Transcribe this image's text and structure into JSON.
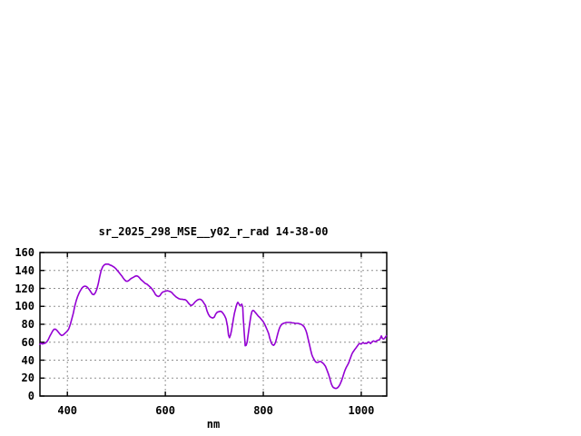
{
  "page": {
    "background": "#ffffff"
  },
  "chart_data": {
    "type": "line",
    "title": "sr_2025_298_MSE__y02_r_rad 14-38-00",
    "xlabel": "nm",
    "ylabel": "",
    "xlim": [
      344,
      1052
    ],
    "ylim": [
      0,
      160
    ],
    "x_ticks": [
      400,
      600,
      800,
      1000
    ],
    "y_ticks": [
      0,
      20,
      40,
      60,
      80,
      100,
      120,
      140,
      160
    ],
    "grid": true,
    "legend_position": "none",
    "colors": {
      "line": "#9400D3",
      "grid": "#909090",
      "border": "#000000",
      "text": "#000000"
    },
    "series": [
      {
        "name": "sr_2025_298_MSE__y02_r_rad 14-38-00",
        "points": [
          [
            344,
            57.5
          ],
          [
            346,
            59
          ],
          [
            349,
            58
          ],
          [
            352,
            58.5
          ],
          [
            355,
            59
          ],
          [
            358,
            60.5
          ],
          [
            361,
            63
          ],
          [
            364,
            66.5
          ],
          [
            367,
            69.5
          ],
          [
            370,
            72.5
          ],
          [
            373,
            74.5
          ],
          [
            376,
            74.5
          ],
          [
            379,
            73
          ],
          [
            382,
            71
          ],
          [
            385,
            69
          ],
          [
            388,
            67.5
          ],
          [
            391,
            68
          ],
          [
            394,
            69.5
          ],
          [
            397,
            71
          ],
          [
            400,
            72.5
          ],
          [
            403,
            75
          ],
          [
            406,
            80
          ],
          [
            409,
            86
          ],
          [
            412,
            92
          ],
          [
            415,
            100
          ],
          [
            418,
            106
          ],
          [
            421,
            111
          ],
          [
            424,
            115
          ],
          [
            427,
            118
          ],
          [
            430,
            120.5
          ],
          [
            433,
            122
          ],
          [
            436,
            122.5
          ],
          [
            439,
            122
          ],
          [
            442,
            120.5
          ],
          [
            445,
            118.5
          ],
          [
            448,
            116
          ],
          [
            451,
            113.5
          ],
          [
            454,
            113
          ],
          [
            457,
            115
          ],
          [
            460,
            119
          ],
          [
            463,
            125
          ],
          [
            466,
            133
          ],
          [
            469,
            140
          ],
          [
            472,
            144
          ],
          [
            475,
            146
          ],
          [
            478,
            147
          ],
          [
            481,
            147
          ],
          [
            484,
            147
          ],
          [
            487,
            146
          ],
          [
            490,
            145.5
          ],
          [
            493,
            144.5
          ],
          [
            496,
            143.5
          ],
          [
            499,
            142
          ],
          [
            502,
            140
          ],
          [
            505,
            138
          ],
          [
            508,
            136
          ],
          [
            511,
            134
          ],
          [
            514,
            131.5
          ],
          [
            517,
            129.5
          ],
          [
            520,
            128
          ],
          [
            523,
            128
          ],
          [
            526,
            129
          ],
          [
            529,
            130.5
          ],
          [
            532,
            131.5
          ],
          [
            535,
            132.5
          ],
          [
            538,
            133.5
          ],
          [
            541,
            134
          ],
          [
            544,
            133.5
          ],
          [
            547,
            132
          ],
          [
            550,
            130
          ],
          [
            553,
            128.5
          ],
          [
            556,
            127
          ],
          [
            559,
            125.5
          ],
          [
            562,
            125
          ],
          [
            565,
            123.5
          ],
          [
            568,
            122
          ],
          [
            571,
            120.5
          ],
          [
            574,
            118.5
          ],
          [
            577,
            116
          ],
          [
            580,
            113
          ],
          [
            583,
            111.5
          ],
          [
            586,
            111
          ],
          [
            589,
            112
          ],
          [
            592,
            114.5
          ],
          [
            595,
            116
          ],
          [
            598,
            116.5
          ],
          [
            601,
            117
          ],
          [
            604,
            117.5
          ],
          [
            607,
            117
          ],
          [
            610,
            116.5
          ],
          [
            613,
            115.5
          ],
          [
            616,
            113.5
          ],
          [
            619,
            112
          ],
          [
            622,
            110.5
          ],
          [
            625,
            109.5
          ],
          [
            628,
            108.5
          ],
          [
            631,
            108
          ],
          [
            634,
            108
          ],
          [
            637,
            107.5
          ],
          [
            640,
            107.5
          ],
          [
            643,
            106.5
          ],
          [
            646,
            104.5
          ],
          [
            649,
            102.5
          ],
          [
            652,
            101
          ],
          [
            655,
            101.5
          ],
          [
            658,
            103
          ],
          [
            661,
            105
          ],
          [
            664,
            106.5
          ],
          [
            667,
            107.5
          ],
          [
            670,
            108
          ],
          [
            673,
            107.5
          ],
          [
            676,
            106
          ],
          [
            679,
            103.5
          ],
          [
            682,
            101
          ],
          [
            685,
            95
          ],
          [
            688,
            91
          ],
          [
            691,
            88.5
          ],
          [
            694,
            87.5
          ],
          [
            697,
            87
          ],
          [
            700,
            88
          ],
          [
            703,
            91.5
          ],
          [
            706,
            93.5
          ],
          [
            709,
            94
          ],
          [
            712,
            94.5
          ],
          [
            715,
            94
          ],
          [
            718,
            92
          ],
          [
            721,
            89.5
          ],
          [
            724,
            86
          ],
          [
            727,
            78
          ],
          [
            729,
            68
          ],
          [
            731,
            65
          ],
          [
            733,
            68
          ],
          [
            735,
            73
          ],
          [
            737,
            79
          ],
          [
            739,
            86
          ],
          [
            741,
            92
          ],
          [
            744,
            98.5
          ],
          [
            746,
            102.5
          ],
          [
            748,
            104.5
          ],
          [
            750,
            103
          ],
          [
            752,
            101
          ],
          [
            754,
            101.5
          ],
          [
            756,
            102.5
          ],
          [
            758,
            99
          ],
          [
            759,
            88
          ],
          [
            761,
            71
          ],
          [
            763,
            56
          ],
          [
            765,
            56.5
          ],
          [
            767,
            60
          ],
          [
            769,
            68
          ],
          [
            771,
            76
          ],
          [
            773,
            84
          ],
          [
            775,
            90
          ],
          [
            777,
            94.5
          ],
          [
            779,
            95.5
          ],
          [
            781,
            95
          ],
          [
            784,
            93
          ],
          [
            787,
            91
          ],
          [
            790,
            89
          ],
          [
            793,
            87.5
          ],
          [
            796,
            85.5
          ],
          [
            799,
            83.5
          ],
          [
            802,
            81
          ],
          [
            805,
            77.5
          ],
          [
            808,
            73.5
          ],
          [
            811,
            69.5
          ],
          [
            813,
            65
          ],
          [
            815,
            61.5
          ],
          [
            817,
            58.5
          ],
          [
            819,
            57
          ],
          [
            821,
            56.5
          ],
          [
            823,
            57.5
          ],
          [
            825,
            60
          ],
          [
            827,
            64
          ],
          [
            829,
            68.5
          ],
          [
            831,
            72.5
          ],
          [
            833,
            75.5
          ],
          [
            835,
            78
          ],
          [
            838,
            80
          ],
          [
            841,
            81
          ],
          [
            844,
            81.5
          ],
          [
            847,
            82
          ],
          [
            850,
            82
          ],
          [
            853,
            82
          ],
          [
            856,
            82
          ],
          [
            859,
            81.5
          ],
          [
            862,
            81.5
          ],
          [
            865,
            81
          ],
          [
            868,
            81
          ],
          [
            871,
            81
          ],
          [
            874,
            80.5
          ],
          [
            877,
            80
          ],
          [
            880,
            79
          ],
          [
            883,
            77.5
          ],
          [
            885,
            75.5
          ],
          [
            887,
            73
          ],
          [
            889,
            69.5
          ],
          [
            891,
            65
          ],
          [
            893,
            60.5
          ],
          [
            895,
            55.5
          ],
          [
            897,
            50.5
          ],
          [
            899,
            46.5
          ],
          [
            901,
            43.5
          ],
          [
            903,
            41.5
          ],
          [
            905,
            39.5
          ],
          [
            907,
            38
          ],
          [
            909,
            37.5
          ],
          [
            911,
            37.5
          ],
          [
            913,
            38
          ],
          [
            915,
            38.5
          ],
          [
            917,
            38.5
          ],
          [
            919,
            38
          ],
          [
            921,
            37
          ],
          [
            923,
            36
          ],
          [
            925,
            34.5
          ],
          [
            927,
            33
          ],
          [
            929,
            30.5
          ],
          [
            931,
            27.5
          ],
          [
            933,
            24.5
          ],
          [
            935,
            21
          ],
          [
            937,
            17
          ],
          [
            939,
            13.5
          ],
          [
            941,
            11
          ],
          [
            943,
            9.5
          ],
          [
            945,
            9
          ],
          [
            947,
            8.5
          ],
          [
            949,
            8.5
          ],
          [
            951,
            9
          ],
          [
            953,
            10
          ],
          [
            955,
            11.5
          ],
          [
            957,
            13.5
          ],
          [
            959,
            16
          ],
          [
            961,
            19
          ],
          [
            963,
            22.5
          ],
          [
            965,
            26
          ],
          [
            967,
            29
          ],
          [
            969,
            31.5
          ],
          [
            971,
            33.5
          ],
          [
            973,
            35.5
          ],
          [
            975,
            38
          ],
          [
            977,
            41
          ],
          [
            979,
            44
          ],
          [
            981,
            47
          ],
          [
            983,
            49
          ],
          [
            985,
            50.5
          ],
          [
            987,
            52
          ],
          [
            989,
            53.5
          ],
          [
            991,
            55
          ],
          [
            993,
            56.5
          ],
          [
            995,
            58
          ],
          [
            997,
            58.5
          ],
          [
            999,
            58
          ],
          [
            1001,
            58.5
          ],
          [
            1003,
            59.5
          ],
          [
            1005,
            59
          ],
          [
            1007,
            58.5
          ],
          [
            1009,
            59
          ],
          [
            1011,
            58.5
          ],
          [
            1013,
            59.5
          ],
          [
            1015,
            60.5
          ],
          [
            1017,
            59.5
          ],
          [
            1019,
            58.5
          ],
          [
            1021,
            60
          ],
          [
            1023,
            61
          ],
          [
            1025,
            61.5
          ],
          [
            1027,
            61
          ],
          [
            1029,
            60.5
          ],
          [
            1031,
            61.5
          ],
          [
            1033,
            62
          ],
          [
            1035,
            62.5
          ],
          [
            1037,
            62.5
          ],
          [
            1039,
            64.5
          ],
          [
            1041,
            67
          ],
          [
            1043,
            64.5
          ],
          [
            1045,
            63.5
          ],
          [
            1047,
            64
          ],
          [
            1049,
            65.5
          ],
          [
            1051,
            67
          ]
        ]
      }
    ]
  }
}
